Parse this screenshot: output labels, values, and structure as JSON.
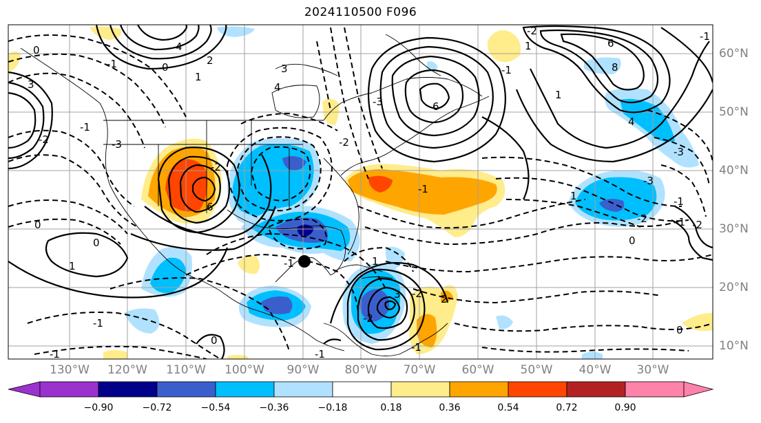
{
  "title": "2024110500 F096",
  "lon_labels": [
    "130°W",
    "120°W",
    "110°W",
    "100°W",
    "90°W",
    "80°W",
    "70°W",
    "60°W",
    "50°W",
    "40°W",
    "30°W"
  ],
  "lat_labels": [
    "60°N",
    "50°N",
    "40°N",
    "30°N",
    "20°N",
    "10°N"
  ],
  "colorbar": {
    "ticks": [
      "−0.90",
      "−0.72",
      "−0.54",
      "−0.36",
      "−0.18",
      "0.18",
      "0.36",
      "0.54",
      "0.72",
      "0.90"
    ],
    "colors": [
      "#9a32cd",
      "#00008b",
      "#3a5fcd",
      "#00bfff",
      "#b0e2ff",
      "#ffffff",
      "#ffec8b",
      "#ffa500",
      "#ff4500",
      "#b22222",
      "#ff82ab"
    ]
  },
  "contour_labels": [
    "0",
    "4",
    "1",
    "2",
    "3",
    "-1",
    "6",
    "-2",
    "-3",
    "3",
    "4",
    "6",
    "-3",
    "-2",
    "1",
    "0",
    "-1",
    "-1",
    "1",
    "0",
    "-1",
    "0",
    "-1",
    "-2",
    "3",
    "1",
    "-2",
    "2",
    "1",
    "-1",
    "0",
    "8",
    "6",
    "-2",
    "4",
    "-3",
    "-1",
    "-1",
    "1",
    "-3",
    "-2",
    "-1",
    "0",
    "-1",
    "-1",
    "-2",
    "-1",
    "0",
    "-2"
  ],
  "colors": {
    "fill_purple": "#9a32cd",
    "fill_navy": "#00008b",
    "fill_royal": "#3a5fcd",
    "fill_sky": "#00bfff",
    "fill_pale_blue": "#b0e2ff",
    "fill_pale_yellow": "#ffec8b",
    "fill_orange": "#ffa500",
    "fill_red_orange": "#ff4500",
    "fill_firebrick": "#b22222",
    "fill_pink": "#ff82ab",
    "grid": "#a0a0a0",
    "label_gray": "#808080"
  },
  "marker": "storm-center-dot"
}
